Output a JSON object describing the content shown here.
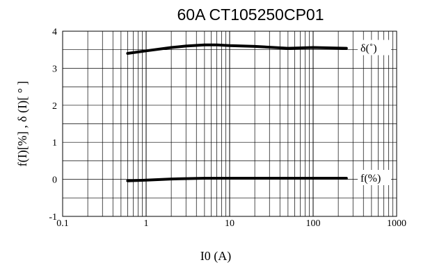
{
  "chart_data": {
    "type": "line",
    "title": "60A CT105250CP01",
    "xlabel": "I0 (A)",
    "ylabel": "f(I)[%] , δ (I)[ ° ]",
    "xscale": "log",
    "xlim": [
      0.1,
      1000
    ],
    "ylim": [
      -1,
      4
    ],
    "grid": true,
    "x_tick_labels": [
      "0.1",
      "1",
      "10",
      "100",
      "1000"
    ],
    "y_tick_labels": [
      "-1",
      "0",
      "1",
      "2",
      "3",
      "4"
    ],
    "series": [
      {
        "name": "δ(˚)",
        "color": "#000000",
        "x": [
          0.6,
          1,
          2,
          3,
          5,
          7,
          10,
          20,
          50,
          100,
          250
        ],
        "y": [
          3.4,
          3.47,
          3.56,
          3.6,
          3.63,
          3.63,
          3.61,
          3.59,
          3.54,
          3.56,
          3.54
        ]
      },
      {
        "name": "f(%)",
        "color": "#000000",
        "x": [
          0.6,
          1,
          2,
          5,
          10,
          50,
          100,
          250
        ],
        "y": [
          -0.04,
          -0.02,
          0.01,
          0.03,
          0.03,
          0.03,
          0.03,
          0.03
        ]
      }
    ]
  }
}
